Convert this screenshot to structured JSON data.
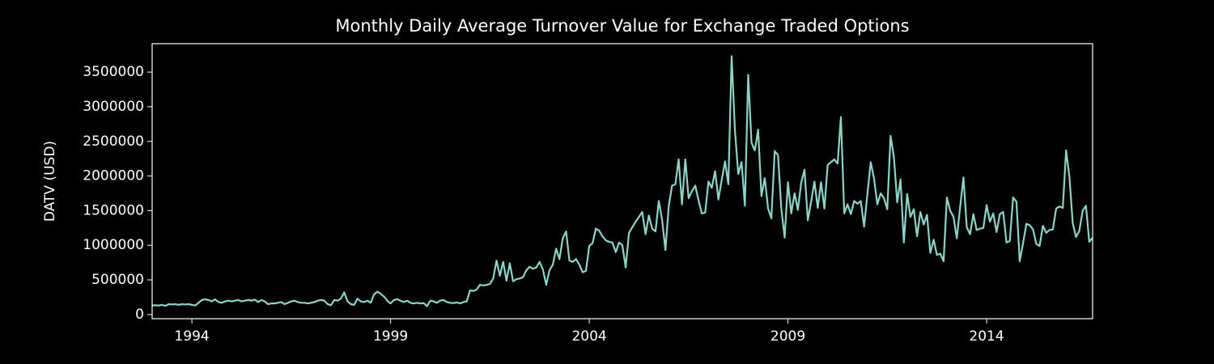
{
  "chart_data": {
    "type": "line",
    "title": "Monthly Daily Average Turnover Value for Exchange Traded Options",
    "y_label": "DATV (USD)",
    "color": "#8dd3c7",
    "xlim": [
      1993,
      2016.667
    ],
    "xticks": [
      1994,
      1999,
      2004,
      2009,
      2014
    ],
    "ylim": [
      -60000,
      3910000
    ],
    "yticks": [
      0,
      500000,
      1000000,
      1500000,
      2000000,
      2500000,
      3000000,
      3500000
    ],
    "x": [
      1993,
      1993.083,
      1993.167,
      1993.25,
      1993.333,
      1993.417,
      1993.5,
      1993.583,
      1993.667,
      1993.75,
      1993.833,
      1993.917,
      1994,
      1994.083,
      1994.167,
      1994.25,
      1994.333,
      1994.417,
      1994.5,
      1994.583,
      1994.667,
      1994.75,
      1994.833,
      1994.917,
      1995,
      1995.083,
      1995.167,
      1995.25,
      1995.333,
      1995.417,
      1995.5,
      1995.583,
      1995.667,
      1995.75,
      1995.833,
      1995.917,
      1996,
      1996.083,
      1996.167,
      1996.25,
      1996.333,
      1996.417,
      1996.5,
      1996.583,
      1996.667,
      1996.75,
      1996.833,
      1996.917,
      1997,
      1997.083,
      1997.167,
      1997.25,
      1997.333,
      1997.417,
      1997.5,
      1997.583,
      1997.667,
      1997.75,
      1997.833,
      1997.917,
      1998,
      1998.083,
      1998.167,
      1998.25,
      1998.333,
      1998.417,
      1998.5,
      1998.583,
      1998.667,
      1998.75,
      1998.833,
      1998.917,
      1999,
      1999.083,
      1999.167,
      1999.25,
      1999.333,
      1999.417,
      1999.5,
      1999.583,
      1999.667,
      1999.75,
      1999.833,
      1999.917,
      2000,
      2000.083,
      2000.167,
      2000.25,
      2000.333,
      2000.417,
      2000.5,
      2000.583,
      2000.667,
      2000.75,
      2000.833,
      2000.917,
      2001,
      2001.083,
      2001.167,
      2001.25,
      2001.333,
      2001.417,
      2001.5,
      2001.583,
      2001.667,
      2001.75,
      2001.833,
      2001.917,
      2002,
      2002.083,
      2002.167,
      2002.25,
      2002.333,
      2002.417,
      2002.5,
      2002.583,
      2002.667,
      2002.75,
      2002.833,
      2002.917,
      2003,
      2003.083,
      2003.167,
      2003.25,
      2003.333,
      2003.417,
      2003.5,
      2003.583,
      2003.667,
      2003.75,
      2003.833,
      2003.917,
      2004,
      2004.083,
      2004.167,
      2004.25,
      2004.333,
      2004.417,
      2004.5,
      2004.583,
      2004.667,
      2004.75,
      2004.833,
      2004.917,
      2005,
      2005.083,
      2005.167,
      2005.25,
      2005.333,
      2005.417,
      2005.5,
      2005.583,
      2005.667,
      2005.75,
      2005.833,
      2005.917,
      2006,
      2006.083,
      2006.167,
      2006.25,
      2006.333,
      2006.417,
      2006.5,
      2006.583,
      2006.667,
      2006.75,
      2006.833,
      2006.917,
      2007,
      2007.083,
      2007.167,
      2007.25,
      2007.333,
      2007.417,
      2007.5,
      2007.583,
      2007.667,
      2007.75,
      2007.833,
      2007.917,
      2008,
      2008.083,
      2008.167,
      2008.25,
      2008.333,
      2008.417,
      2008.5,
      2008.583,
      2008.667,
      2008.75,
      2008.833,
      2008.917,
      2009,
      2009.083,
      2009.167,
      2009.25,
      2009.333,
      2009.417,
      2009.5,
      2009.583,
      2009.667,
      2009.75,
      2009.833,
      2009.917,
      2010,
      2010.083,
      2010.167,
      2010.25,
      2010.333,
      2010.417,
      2010.5,
      2010.583,
      2010.667,
      2010.75,
      2010.833,
      2010.917,
      2011,
      2011.083,
      2011.167,
      2011.25,
      2011.333,
      2011.417,
      2011.5,
      2011.583,
      2011.667,
      2011.75,
      2011.833,
      2011.917,
      2012,
      2012.083,
      2012.167,
      2012.25,
      2012.333,
      2012.417,
      2012.5,
      2012.583,
      2012.667,
      2012.75,
      2012.833,
      2012.917,
      2013,
      2013.083,
      2013.167,
      2013.25,
      2013.333,
      2013.417,
      2013.5,
      2013.583,
      2013.667,
      2013.75,
      2013.833,
      2013.917,
      2014,
      2014.083,
      2014.167,
      2014.25,
      2014.333,
      2014.417,
      2014.5,
      2014.583,
      2014.667,
      2014.75,
      2014.833,
      2014.917,
      2015,
      2015.083,
      2015.167,
      2015.25,
      2015.333,
      2015.417,
      2015.5,
      2015.583,
      2015.667,
      2015.75,
      2015.833,
      2015.917,
      2016,
      2016.083,
      2016.167,
      2016.25,
      2016.333,
      2016.417,
      2016.5,
      2016.583,
      2016.667
    ],
    "values": [
      130000,
      135000,
      130000,
      140000,
      125000,
      150000,
      145000,
      150000,
      140000,
      150000,
      145000,
      150000,
      140000,
      130000,
      170000,
      210000,
      220000,
      210000,
      190000,
      220000,
      180000,
      170000,
      190000,
      200000,
      190000,
      200000,
      210000,
      190000,
      200000,
      210000,
      200000,
      215000,
      180000,
      210000,
      190000,
      150000,
      160000,
      160000,
      170000,
      180000,
      150000,
      170000,
      190000,
      200000,
      180000,
      170000,
      170000,
      160000,
      170000,
      180000,
      200000,
      210000,
      200000,
      150000,
      135000,
      210000,
      200000,
      230000,
      320000,
      190000,
      150000,
      140000,
      230000,
      190000,
      180000,
      200000,
      170000,
      290000,
      330000,
      300000,
      260000,
      200000,
      160000,
      210000,
      220000,
      200000,
      180000,
      200000,
      170000,
      160000,
      170000,
      160000,
      165000,
      120000,
      200000,
      190000,
      170000,
      200000,
      210000,
      180000,
      170000,
      165000,
      175000,
      160000,
      180000,
      190000,
      350000,
      340000,
      360000,
      430000,
      420000,
      430000,
      440000,
      520000,
      780000,
      560000,
      760000,
      490000,
      740000,
      480000,
      510000,
      520000,
      540000,
      640000,
      690000,
      660000,
      680000,
      760000,
      650000,
      430000,
      640000,
      720000,
      950000,
      800000,
      1100000,
      1200000,
      780000,
      760000,
      800000,
      720000,
      610000,
      630000,
      990000,
      1030000,
      1240000,
      1210000,
      1130000,
      1070000,
      1050000,
      1040000,
      900000,
      1040000,
      1000000,
      680000,
      1180000,
      1260000,
      1340000,
      1410000,
      1480000,
      1160000,
      1430000,
      1240000,
      1200000,
      1640000,
      1370000,
      930000,
      1560000,
      1860000,
      1880000,
      2240000,
      1590000,
      2240000,
      1680000,
      1780000,
      1860000,
      1650000,
      1460000,
      1470000,
      1920000,
      1830000,
      2070000,
      1660000,
      1940000,
      2210000,
      1880000,
      3730000,
      2650000,
      2030000,
      2200000,
      1570000,
      3460000,
      2480000,
      2370000,
      2670000,
      1710000,
      1970000,
      1530000,
      1390000,
      2360000,
      2300000,
      1530000,
      1110000,
      1910000,
      1460000,
      1750000,
      1510000,
      1900000,
      2090000,
      1360000,
      1630000,
      1920000,
      1540000,
      1910000,
      1530000,
      2160000,
      2200000,
      2240000,
      2180000,
      2850000,
      1460000,
      1590000,
      1450000,
      1640000,
      1600000,
      1640000,
      1270000,
      1740000,
      2200000,
      1960000,
      1590000,
      1750000,
      1680000,
      1520000,
      2580000,
      2270000,
      1620000,
      1950000,
      1040000,
      1740000,
      1410000,
      1520000,
      1130000,
      1480000,
      1300000,
      1440000,
      890000,
      1080000,
      860000,
      880000,
      770000,
      1690000,
      1500000,
      1410000,
      1100000,
      1550000,
      1980000,
      1260000,
      1160000,
      1450000,
      1220000,
      1240000,
      1250000,
      1580000,
      1340000,
      1460000,
      1190000,
      1450000,
      1480000,
      1040000,
      1060000,
      1690000,
      1630000,
      770000,
      1030000,
      1310000,
      1290000,
      1230000,
      1020000,
      990000,
      1280000,
      1180000,
      1220000,
      1230000,
      1530000,
      1560000,
      1540000,
      2370000,
      1990000,
      1320000,
      1120000,
      1210000,
      1500000,
      1570000,
      1050000,
      1110000
    ]
  }
}
